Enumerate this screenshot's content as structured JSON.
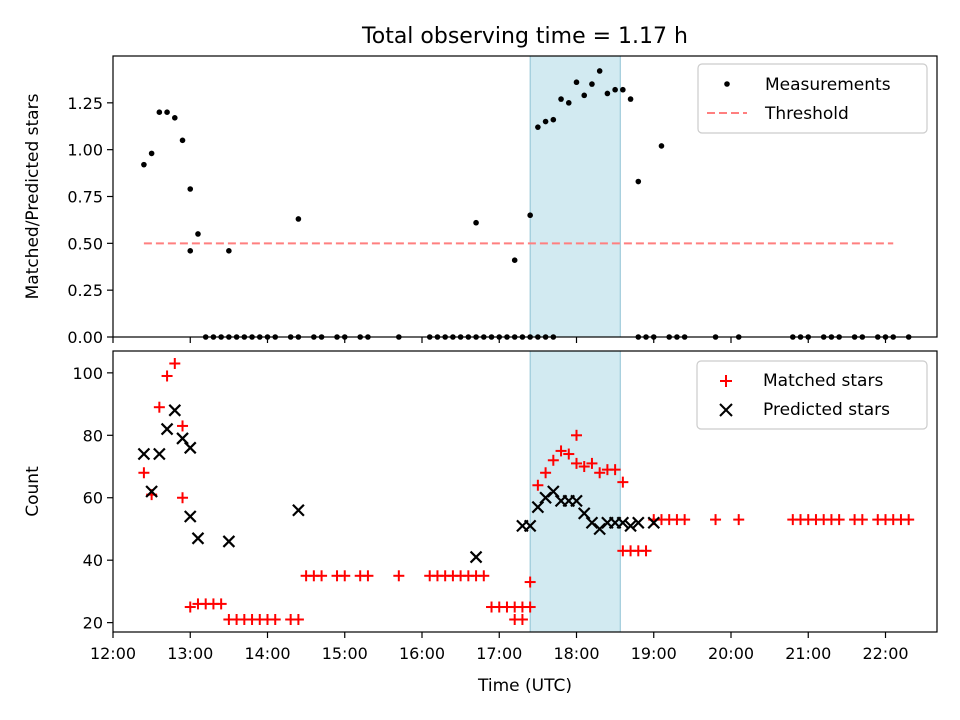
{
  "title": "Total observing time = 1.17 h",
  "colors": {
    "measurements": "#000000",
    "threshold": "#ff7f7f",
    "matched": "#ff0000",
    "predicted": "#000000",
    "span": "#add8e6"
  },
  "chart_data": [
    {
      "type": "scatter",
      "ylabel": "Matched/Predicted stars",
      "xlabel": "",
      "xlim": [
        "12:00",
        "22:40"
      ],
      "ylim": [
        0,
        1.5
      ],
      "yticks": [
        "0.00",
        "0.25",
        "0.50",
        "0.75",
        "1.00",
        "1.25"
      ],
      "legend": {
        "position": "top-right",
        "entries": [
          "Measurements",
          "Threshold"
        ]
      },
      "highlight_span": [
        "17:24",
        "18:34"
      ],
      "threshold": {
        "name": "Threshold",
        "y": 0.5,
        "x": [
          "12:24",
          "22:06"
        ]
      },
      "series": [
        {
          "name": "Measurements",
          "points": [
            [
              "12:24",
              0.92
            ],
            [
              "12:30",
              0.98
            ],
            [
              "12:36",
              1.2
            ],
            [
              "12:42",
              1.2
            ],
            [
              "12:48",
              1.17
            ],
            [
              "12:54",
              1.05
            ],
            [
              "13:00",
              0.79
            ],
            [
              "13:00",
              0.46
            ],
            [
              "13:06",
              0.55
            ],
            [
              "13:30",
              0.46
            ],
            [
              "14:24",
              0.63
            ],
            [
              "16:42",
              0.61
            ],
            [
              "17:12",
              0.41
            ],
            [
              "17:24",
              0.65
            ],
            [
              "17:30",
              1.12
            ],
            [
              "17:36",
              1.15
            ],
            [
              "17:42",
              1.16
            ],
            [
              "17:48",
              1.27
            ],
            [
              "17:54",
              1.25
            ],
            [
              "18:00",
              1.36
            ],
            [
              "18:06",
              1.29
            ],
            [
              "18:12",
              1.35
            ],
            [
              "18:18",
              1.42
            ],
            [
              "18:24",
              1.3
            ],
            [
              "18:30",
              1.32
            ],
            [
              "18:36",
              1.32
            ],
            [
              "18:42",
              1.27
            ],
            [
              "18:48",
              0.83
            ],
            [
              "19:06",
              1.02
            ],
            [
              "13:12",
              0
            ],
            [
              "13:18",
              0
            ],
            [
              "13:24",
              0
            ],
            [
              "13:30",
              0
            ],
            [
              "13:36",
              0
            ],
            [
              "13:42",
              0
            ],
            [
              "13:48",
              0
            ],
            [
              "13:54",
              0
            ],
            [
              "14:00",
              0
            ],
            [
              "14:06",
              0
            ],
            [
              "14:18",
              0
            ],
            [
              "14:24",
              0
            ],
            [
              "14:36",
              0
            ],
            [
              "14:42",
              0
            ],
            [
              "14:54",
              0
            ],
            [
              "15:00",
              0
            ],
            [
              "15:12",
              0
            ],
            [
              "15:18",
              0
            ],
            [
              "15:42",
              0
            ],
            [
              "16:06",
              0
            ],
            [
              "16:12",
              0
            ],
            [
              "16:18",
              0
            ],
            [
              "16:24",
              0
            ],
            [
              "16:30",
              0
            ],
            [
              "16:36",
              0
            ],
            [
              "16:42",
              0
            ],
            [
              "16:48",
              0
            ],
            [
              "16:54",
              0
            ],
            [
              "17:00",
              0
            ],
            [
              "17:06",
              0
            ],
            [
              "17:12",
              0
            ],
            [
              "17:18",
              0
            ],
            [
              "17:24",
              0
            ],
            [
              "17:30",
              0
            ],
            [
              "17:36",
              0
            ],
            [
              "17:42",
              0
            ],
            [
              "18:48",
              0
            ],
            [
              "18:54",
              0
            ],
            [
              "19:00",
              0
            ],
            [
              "19:12",
              0
            ],
            [
              "19:18",
              0
            ],
            [
              "19:24",
              0
            ],
            [
              "19:48",
              0
            ],
            [
              "20:06",
              0
            ],
            [
              "20:48",
              0
            ],
            [
              "20:54",
              0
            ],
            [
              "21:00",
              0
            ],
            [
              "21:12",
              0
            ],
            [
              "21:18",
              0
            ],
            [
              "21:24",
              0
            ],
            [
              "21:36",
              0
            ],
            [
              "21:42",
              0
            ],
            [
              "21:54",
              0
            ],
            [
              "22:00",
              0
            ],
            [
              "22:06",
              0
            ],
            [
              "22:18",
              0
            ]
          ]
        }
      ]
    },
    {
      "type": "scatter",
      "ylabel": "Count",
      "xlabel": "Time (UTC)",
      "xlim": [
        "12:00",
        "22:40"
      ],
      "ylim": [
        17,
        107
      ],
      "yticks": [
        "20",
        "40",
        "60",
        "80",
        "100"
      ],
      "xticks": [
        "12:00",
        "13:00",
        "14:00",
        "15:00",
        "16:00",
        "17:00",
        "18:00",
        "19:00",
        "20:00",
        "21:00",
        "22:00"
      ],
      "legend": {
        "position": "top-right",
        "entries": [
          "Matched stars",
          "Predicted stars"
        ]
      },
      "highlight_span": [
        "17:24",
        "18:34"
      ],
      "series": [
        {
          "name": "Matched stars",
          "marker": "plus",
          "points": [
            [
              "12:24",
              68
            ],
            [
              "12:30",
              61
            ],
            [
              "12:36",
              89
            ],
            [
              "12:42",
              99
            ],
            [
              "12:48",
              103
            ],
            [
              "12:54",
              83
            ],
            [
              "12:54",
              60
            ],
            [
              "13:00",
              25
            ],
            [
              "13:06",
              26
            ],
            [
              "13:12",
              26
            ],
            [
              "13:18",
              26
            ],
            [
              "13:24",
              26
            ],
            [
              "13:30",
              21
            ],
            [
              "13:36",
              21
            ],
            [
              "13:42",
              21
            ],
            [
              "13:48",
              21
            ],
            [
              "13:54",
              21
            ],
            [
              "14:00",
              21
            ],
            [
              "14:06",
              21
            ],
            [
              "14:18",
              21
            ],
            [
              "14:24",
              21
            ],
            [
              "14:30",
              35
            ],
            [
              "14:36",
              35
            ],
            [
              "14:42",
              35
            ],
            [
              "14:54",
              35
            ],
            [
              "15:00",
              35
            ],
            [
              "15:12",
              35
            ],
            [
              "15:18",
              35
            ],
            [
              "15:42",
              35
            ],
            [
              "16:06",
              35
            ],
            [
              "16:12",
              35
            ],
            [
              "16:18",
              35
            ],
            [
              "16:24",
              35
            ],
            [
              "16:30",
              35
            ],
            [
              "16:36",
              35
            ],
            [
              "16:42",
              35
            ],
            [
              "16:48",
              35
            ],
            [
              "16:54",
              25
            ],
            [
              "17:00",
              25
            ],
            [
              "17:06",
              25
            ],
            [
              "17:12",
              25
            ],
            [
              "17:18",
              25
            ],
            [
              "17:24",
              25
            ],
            [
              "17:12",
              21
            ],
            [
              "17:18",
              21
            ],
            [
              "17:24",
              33
            ],
            [
              "17:30",
              64
            ],
            [
              "17:36",
              68
            ],
            [
              "17:42",
              72
            ],
            [
              "17:48",
              75
            ],
            [
              "17:54",
              74
            ],
            [
              "18:00",
              80
            ],
            [
              "18:00",
              71
            ],
            [
              "18:06",
              70
            ],
            [
              "18:12",
              71
            ],
            [
              "18:18",
              68
            ],
            [
              "18:24",
              69
            ],
            [
              "18:30",
              69
            ],
            [
              "18:36",
              65
            ],
            [
              "18:36",
              43
            ],
            [
              "18:42",
              43
            ],
            [
              "18:48",
              43
            ],
            [
              "18:54",
              43
            ],
            [
              "19:00",
              53
            ],
            [
              "19:06",
              53
            ],
            [
              "19:12",
              53
            ],
            [
              "19:18",
              53
            ],
            [
              "19:24",
              53
            ],
            [
              "19:48",
              53
            ],
            [
              "20:06",
              53
            ],
            [
              "20:48",
              53
            ],
            [
              "20:54",
              53
            ],
            [
              "21:00",
              53
            ],
            [
              "21:06",
              53
            ],
            [
              "21:12",
              53
            ],
            [
              "21:18",
              53
            ],
            [
              "21:24",
              53
            ],
            [
              "21:36",
              53
            ],
            [
              "21:42",
              53
            ],
            [
              "21:54",
              53
            ],
            [
              "22:00",
              53
            ],
            [
              "22:06",
              53
            ],
            [
              "22:12",
              53
            ],
            [
              "22:18",
              53
            ]
          ]
        },
        {
          "name": "Predicted stars",
          "marker": "x",
          "points": [
            [
              "12:24",
              74
            ],
            [
              "12:30",
              62
            ],
            [
              "12:36",
              74
            ],
            [
              "12:42",
              82
            ],
            [
              "12:48",
              88
            ],
            [
              "12:54",
              79
            ],
            [
              "13:00",
              76
            ],
            [
              "13:00",
              54
            ],
            [
              "13:06",
              47
            ],
            [
              "13:30",
              46
            ],
            [
              "14:24",
              56
            ],
            [
              "16:42",
              41
            ],
            [
              "17:18",
              51
            ],
            [
              "17:24",
              51
            ],
            [
              "17:30",
              57
            ],
            [
              "17:36",
              60
            ],
            [
              "17:42",
              62
            ],
            [
              "17:48",
              59
            ],
            [
              "17:54",
              59
            ],
            [
              "18:00",
              59
            ],
            [
              "18:06",
              55
            ],
            [
              "18:12",
              52
            ],
            [
              "18:18",
              50
            ],
            [
              "18:24",
              52
            ],
            [
              "18:30",
              52
            ],
            [
              "18:36",
              52
            ],
            [
              "18:42",
              51
            ],
            [
              "18:48",
              52
            ],
            [
              "19:00",
              52
            ]
          ]
        }
      ]
    }
  ]
}
